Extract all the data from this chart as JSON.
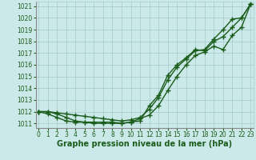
{
  "x": [
    0,
    1,
    2,
    3,
    4,
    5,
    6,
    7,
    8,
    9,
    10,
    11,
    12,
    13,
    14,
    15,
    16,
    17,
    18,
    19,
    20,
    21,
    22,
    23
  ],
  "line1": [
    1012.0,
    1012.0,
    1011.9,
    1011.8,
    1011.7,
    1011.6,
    1011.5,
    1011.4,
    1011.3,
    1011.2,
    1011.3,
    1011.5,
    1012.2,
    1013.2,
    1014.7,
    1015.8,
    1016.5,
    1017.2,
    1017.3,
    1018.2,
    1019.0,
    1019.9,
    1020.0,
    1021.2
  ],
  "line2": [
    1012.0,
    1012.0,
    1011.8,
    1011.5,
    1011.2,
    1011.1,
    1011.0,
    1011.0,
    1011.0,
    1011.0,
    1011.1,
    1011.2,
    1012.5,
    1013.4,
    1015.1,
    1016.0,
    1016.6,
    1017.3,
    1017.2,
    1018.0,
    1018.4,
    1019.2,
    1020.0,
    1021.2
  ],
  "line3": [
    1012.0,
    1011.8,
    1011.5,
    1011.2,
    1011.1,
    1011.1,
    1011.1,
    1011.1,
    1011.1,
    1011.0,
    1011.1,
    1011.4,
    1011.7,
    1012.5,
    1013.8,
    1015.0,
    1016.0,
    1016.8,
    1017.1,
    1017.6,
    1017.3,
    1018.5,
    1019.2,
    1021.2
  ],
  "ylim": [
    1010.6,
    1021.4
  ],
  "yticks": [
    1011,
    1012,
    1013,
    1014,
    1015,
    1016,
    1017,
    1018,
    1019,
    1020,
    1021
  ],
  "xlim": [
    -0.3,
    23.3
  ],
  "xticks": [
    0,
    1,
    2,
    3,
    4,
    5,
    6,
    7,
    8,
    9,
    10,
    11,
    12,
    13,
    14,
    15,
    16,
    17,
    18,
    19,
    20,
    21,
    22,
    23
  ],
  "xlabel": "Graphe pression niveau de la mer (hPa)",
  "bg_color": "#cce9e9",
  "line_color": "#1a5c1a",
  "grid_color": "#aacece",
  "marker": "+",
  "marker_size": 4,
  "line_width": 1.0,
  "tick_fontsize": 5.5,
  "xlabel_fontsize": 7.0
}
